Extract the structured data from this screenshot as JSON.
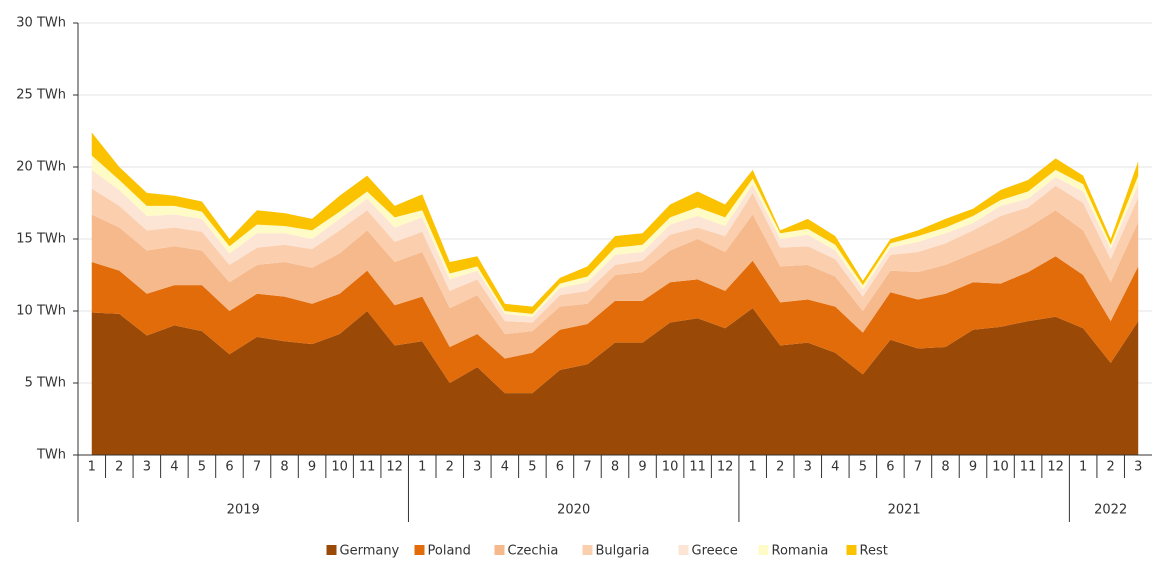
{
  "chart_data": {
    "type": "stacked_area",
    "categories": [
      "1",
      "2",
      "3",
      "4",
      "5",
      "6",
      "7",
      "8",
      "9",
      "10",
      "11",
      "12",
      "1",
      "2",
      "3",
      "4",
      "5",
      "6",
      "7",
      "8",
      "9",
      "10",
      "11",
      "12",
      "1",
      "2",
      "3",
      "4",
      "5",
      "6",
      "7",
      "8",
      "9",
      "10",
      "11",
      "12",
      "1",
      "2",
      "3"
    ],
    "years": [
      "2019",
      "2020",
      "2021",
      "2022"
    ],
    "series": [
      {
        "name": "Germany",
        "color": "#9a4a06",
        "values": [
          9.9,
          9.8,
          8.3,
          9.0,
          8.6,
          7.0,
          8.2,
          7.9,
          7.7,
          8.4,
          10.0,
          7.6,
          7.9,
          5.0,
          6.1,
          4.3,
          4.3,
          5.9,
          6.3,
          7.8,
          7.8,
          9.2,
          9.5,
          8.8,
          10.2,
          7.6,
          7.8,
          7.1,
          5.6,
          8.0,
          7.4,
          7.5,
          8.7,
          8.9,
          9.3,
          9.6,
          8.8,
          6.4,
          9.3
        ]
      },
      {
        "name": "Poland",
        "color": "#e36c0a",
        "values": [
          3.5,
          3.0,
          2.9,
          2.8,
          3.2,
          3.0,
          3.0,
          3.1,
          2.8,
          2.8,
          2.8,
          2.8,
          3.1,
          2.5,
          2.3,
          2.4,
          2.8,
          2.8,
          2.8,
          2.9,
          2.9,
          2.8,
          2.7,
          2.6,
          3.3,
          3.0,
          3.0,
          3.2,
          2.9,
          3.3,
          3.4,
          3.7,
          3.3,
          3.0,
          3.4,
          4.2,
          3.7,
          2.9,
          3.8
        ]
      },
      {
        "name": "Czechia",
        "color": "#f5b98c",
        "values": [
          3.3,
          3.0,
          3.0,
          2.7,
          2.4,
          2.0,
          2.0,
          2.4,
          2.5,
          2.8,
          2.8,
          3.0,
          3.1,
          2.7,
          2.7,
          1.7,
          1.5,
          1.6,
          1.4,
          1.8,
          2.0,
          2.2,
          2.8,
          2.7,
          3.2,
          2.5,
          2.4,
          2.1,
          1.5,
          1.5,
          1.9,
          2.0,
          2.0,
          2.9,
          3.1,
          3.2,
          3.1,
          2.7,
          3.1
        ]
      },
      {
        "name": "Bulgaria",
        "color": "#fbcfae",
        "values": [
          1.8,
          1.5,
          1.4,
          1.3,
          1.3,
          1.2,
          1.2,
          1.2,
          1.3,
          1.6,
          1.4,
          1.4,
          1.4,
          1.2,
          1.1,
          0.9,
          0.6,
          0.8,
          0.9,
          0.7,
          0.8,
          1.1,
          0.8,
          1.1,
          1.5,
          1.3,
          1.3,
          1.2,
          1.0,
          1.1,
          1.4,
          1.5,
          1.6,
          1.8,
          1.4,
          1.7,
          1.9,
          1.6,
          1.7
        ]
      },
      {
        "name": "Greece",
        "color": "#fde5d6",
        "values": [
          1.3,
          1.1,
          1.0,
          0.9,
          0.9,
          0.8,
          1.0,
          0.8,
          0.7,
          0.8,
          0.8,
          1.0,
          1.0,
          0.8,
          0.6,
          0.5,
          0.4,
          0.5,
          0.6,
          0.7,
          0.6,
          0.7,
          0.8,
          0.7,
          0.6,
          0.6,
          0.8,
          0.6,
          0.5,
          0.5,
          0.7,
          0.7,
          0.5,
          0.7,
          0.6,
          0.6,
          0.8,
          0.7,
          0.9
        ]
      },
      {
        "name": "Romania",
        "color": "#fffbc6",
        "values": [
          1.0,
          0.7,
          0.7,
          0.6,
          0.5,
          0.5,
          0.6,
          0.5,
          0.6,
          0.5,
          0.5,
          0.7,
          0.5,
          0.4,
          0.3,
          0.2,
          0.2,
          0.3,
          0.4,
          0.5,
          0.5,
          0.5,
          0.6,
          0.6,
          0.4,
          0.4,
          0.4,
          0.4,
          0.3,
          0.3,
          0.4,
          0.4,
          0.5,
          0.4,
          0.5,
          0.5,
          0.5,
          0.3,
          0.6
        ]
      },
      {
        "name": "Rest",
        "color": "#fbc200",
        "values": [
          1.6,
          0.9,
          0.9,
          0.7,
          0.7,
          0.5,
          1.0,
          0.9,
          0.8,
          1.1,
          1.1,
          0.8,
          1.1,
          0.8,
          0.7,
          0.5,
          0.5,
          0.4,
          0.7,
          0.8,
          0.8,
          0.9,
          1.1,
          0.9,
          0.6,
          0.2,
          0.7,
          0.6,
          0.3,
          0.3,
          0.4,
          0.6,
          0.5,
          0.7,
          0.8,
          0.8,
          0.6,
          0.4,
          1.0
        ]
      }
    ],
    "ylim": [
      0,
      30
    ],
    "yticks": [
      {
        "value": 0,
        "label": "TWh"
      },
      {
        "value": 5,
        "label": "5 TWh"
      },
      {
        "value": 10,
        "label": "10 TWh"
      },
      {
        "value": 15,
        "label": "15 TWh"
      },
      {
        "value": 20,
        "label": "20 TWh"
      },
      {
        "value": 25,
        "label": "25 TWh"
      },
      {
        "value": 30,
        "label": "30 TWh"
      }
    ],
    "grid": true,
    "legend": "bottom"
  }
}
